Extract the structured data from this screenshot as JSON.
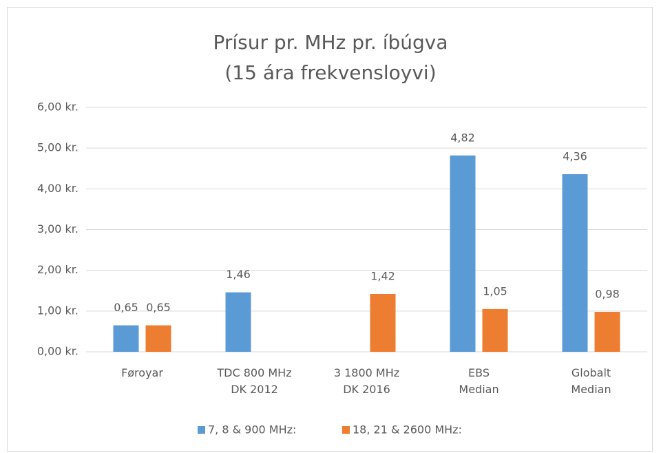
{
  "chart_data": {
    "type": "bar",
    "title": "Prísur pr. MHz pr. íbúgva\n(15 ára frekvensloyvi)",
    "categories": [
      "Føroyar",
      "TDC 800 MHz\nDK 2012",
      "3 1800 MHz\nDK 2016",
      "EBS\nMedian",
      "Globalt\nMedian"
    ],
    "series": [
      {
        "name": "7, 8 & 900 MHz:",
        "color": "#5b9bd5",
        "values": [
          0.65,
          1.46,
          null,
          4.82,
          4.36
        ],
        "value_labels": [
          "0,65",
          "1,46",
          null,
          "4,82",
          "4,36"
        ]
      },
      {
        "name": "18, 21 & 2600 MHz:",
        "color": "#ed7d31",
        "values": [
          0.65,
          null,
          1.42,
          1.05,
          0.98
        ],
        "value_labels": [
          "0,65",
          null,
          "1,42",
          "1,05",
          "0,98"
        ]
      }
    ],
    "ylim": [
      0,
      6
    ],
    "yticks": [
      {
        "value": 0,
        "label": "0,00 kr."
      },
      {
        "value": 1,
        "label": "1,00 kr."
      },
      {
        "value": 2,
        "label": "2,00 kr."
      },
      {
        "value": 3,
        "label": "3,00 kr."
      },
      {
        "value": 4,
        "label": "4,00 kr."
      },
      {
        "value": 5,
        "label": "5,00 kr."
      },
      {
        "value": 6,
        "label": "6,00 kr."
      }
    ],
    "grid": true,
    "legend": "bottom"
  }
}
